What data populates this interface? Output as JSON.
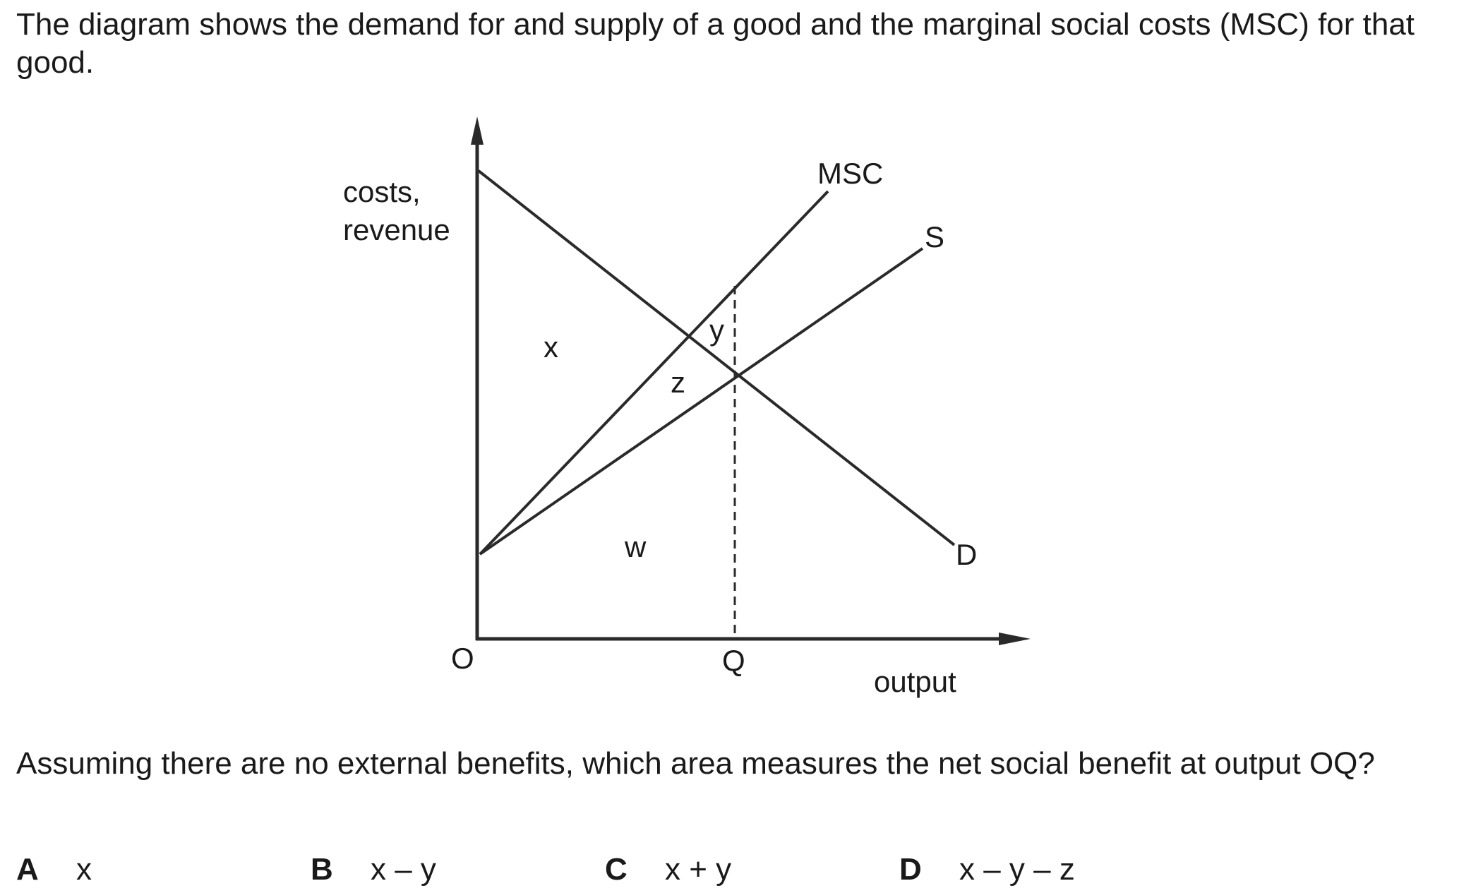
{
  "intro_text": "The diagram shows the demand for and supply of a good and the marginal social costs (MSC) for that good.",
  "diagram": {
    "y_axis_label_line1": "costs,",
    "y_axis_label_line2": "revenue",
    "x_axis_label": "output",
    "origin_label": "O",
    "q_label": "Q",
    "curve_labels": {
      "msc": "MSC",
      "s": "S",
      "d": "D"
    },
    "area_labels": {
      "x": "x",
      "y": "y",
      "z": "z",
      "w": "w"
    }
  },
  "question_text": "Assuming there are no external benefits, which area measures the net social benefit at output OQ?",
  "options": [
    {
      "letter": "A",
      "expr": "x"
    },
    {
      "letter": "B",
      "expr": "x – y"
    },
    {
      "letter": "C",
      "expr": "x + y"
    },
    {
      "letter": "D",
      "expr": "x – y – z"
    }
  ]
}
